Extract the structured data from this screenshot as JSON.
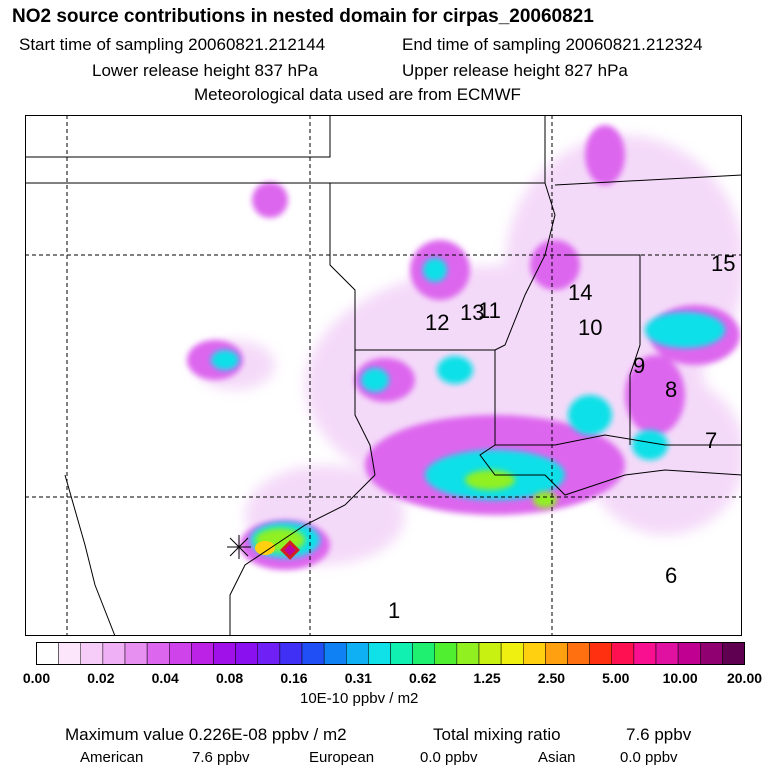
{
  "header": {
    "title": "NO2 source contributions in nested domain for cirpas_20060821",
    "start_time": "Start time of sampling 20060821.212144",
    "end_time": "End time of sampling 20060821.212324",
    "lower_release": "Lower release height  837 hPa",
    "upper_release": "Upper release height  827 hPa",
    "met_data": "Meteorological data used are from ECMWF"
  },
  "map": {
    "region_labels": [
      "1",
      "6",
      "7",
      "8",
      "9",
      "10",
      "11",
      "12",
      "13",
      "14",
      "15"
    ]
  },
  "colorbar": {
    "colors": [
      "#ffffff",
      "#fce6fc",
      "#f6ccf8",
      "#efb0f5",
      "#e88ff2",
      "#dd66ee",
      "#cf44ea",
      "#bb22e6",
      "#a010e8",
      "#8a10f0",
      "#6e20f5",
      "#4030f5",
      "#2050f5",
      "#1080f5",
      "#10b0f5",
      "#10e0e8",
      "#10f0b0",
      "#20f070",
      "#50f030",
      "#90f020",
      "#c8f010",
      "#f0f010",
      "#ffd010",
      "#ffa010",
      "#ff7010",
      "#ff3010",
      "#ff1050",
      "#f81090",
      "#e010a0",
      "#c00090",
      "#900070",
      "#600050"
    ],
    "tick_labels": [
      "0.00",
      "0.02",
      "0.04",
      "0.08",
      "0.16",
      "0.31",
      "0.62",
      "1.25",
      "2.50",
      "5.00",
      "10.00",
      "20.00"
    ],
    "units": "10E-10 ppbv / m2"
  },
  "footer": {
    "max_value": "Maximum value  0.226E-08 ppbv / m2",
    "total_mixing_label": "Total mixing ratio",
    "total_mixing_value": "7.6 ppbv",
    "american_label": "American",
    "american_value": "7.6 ppbv",
    "european_label": "European",
    "european_value": "0.0 ppbv",
    "asian_label": "Asian",
    "asian_value": "0.0 ppbv"
  }
}
